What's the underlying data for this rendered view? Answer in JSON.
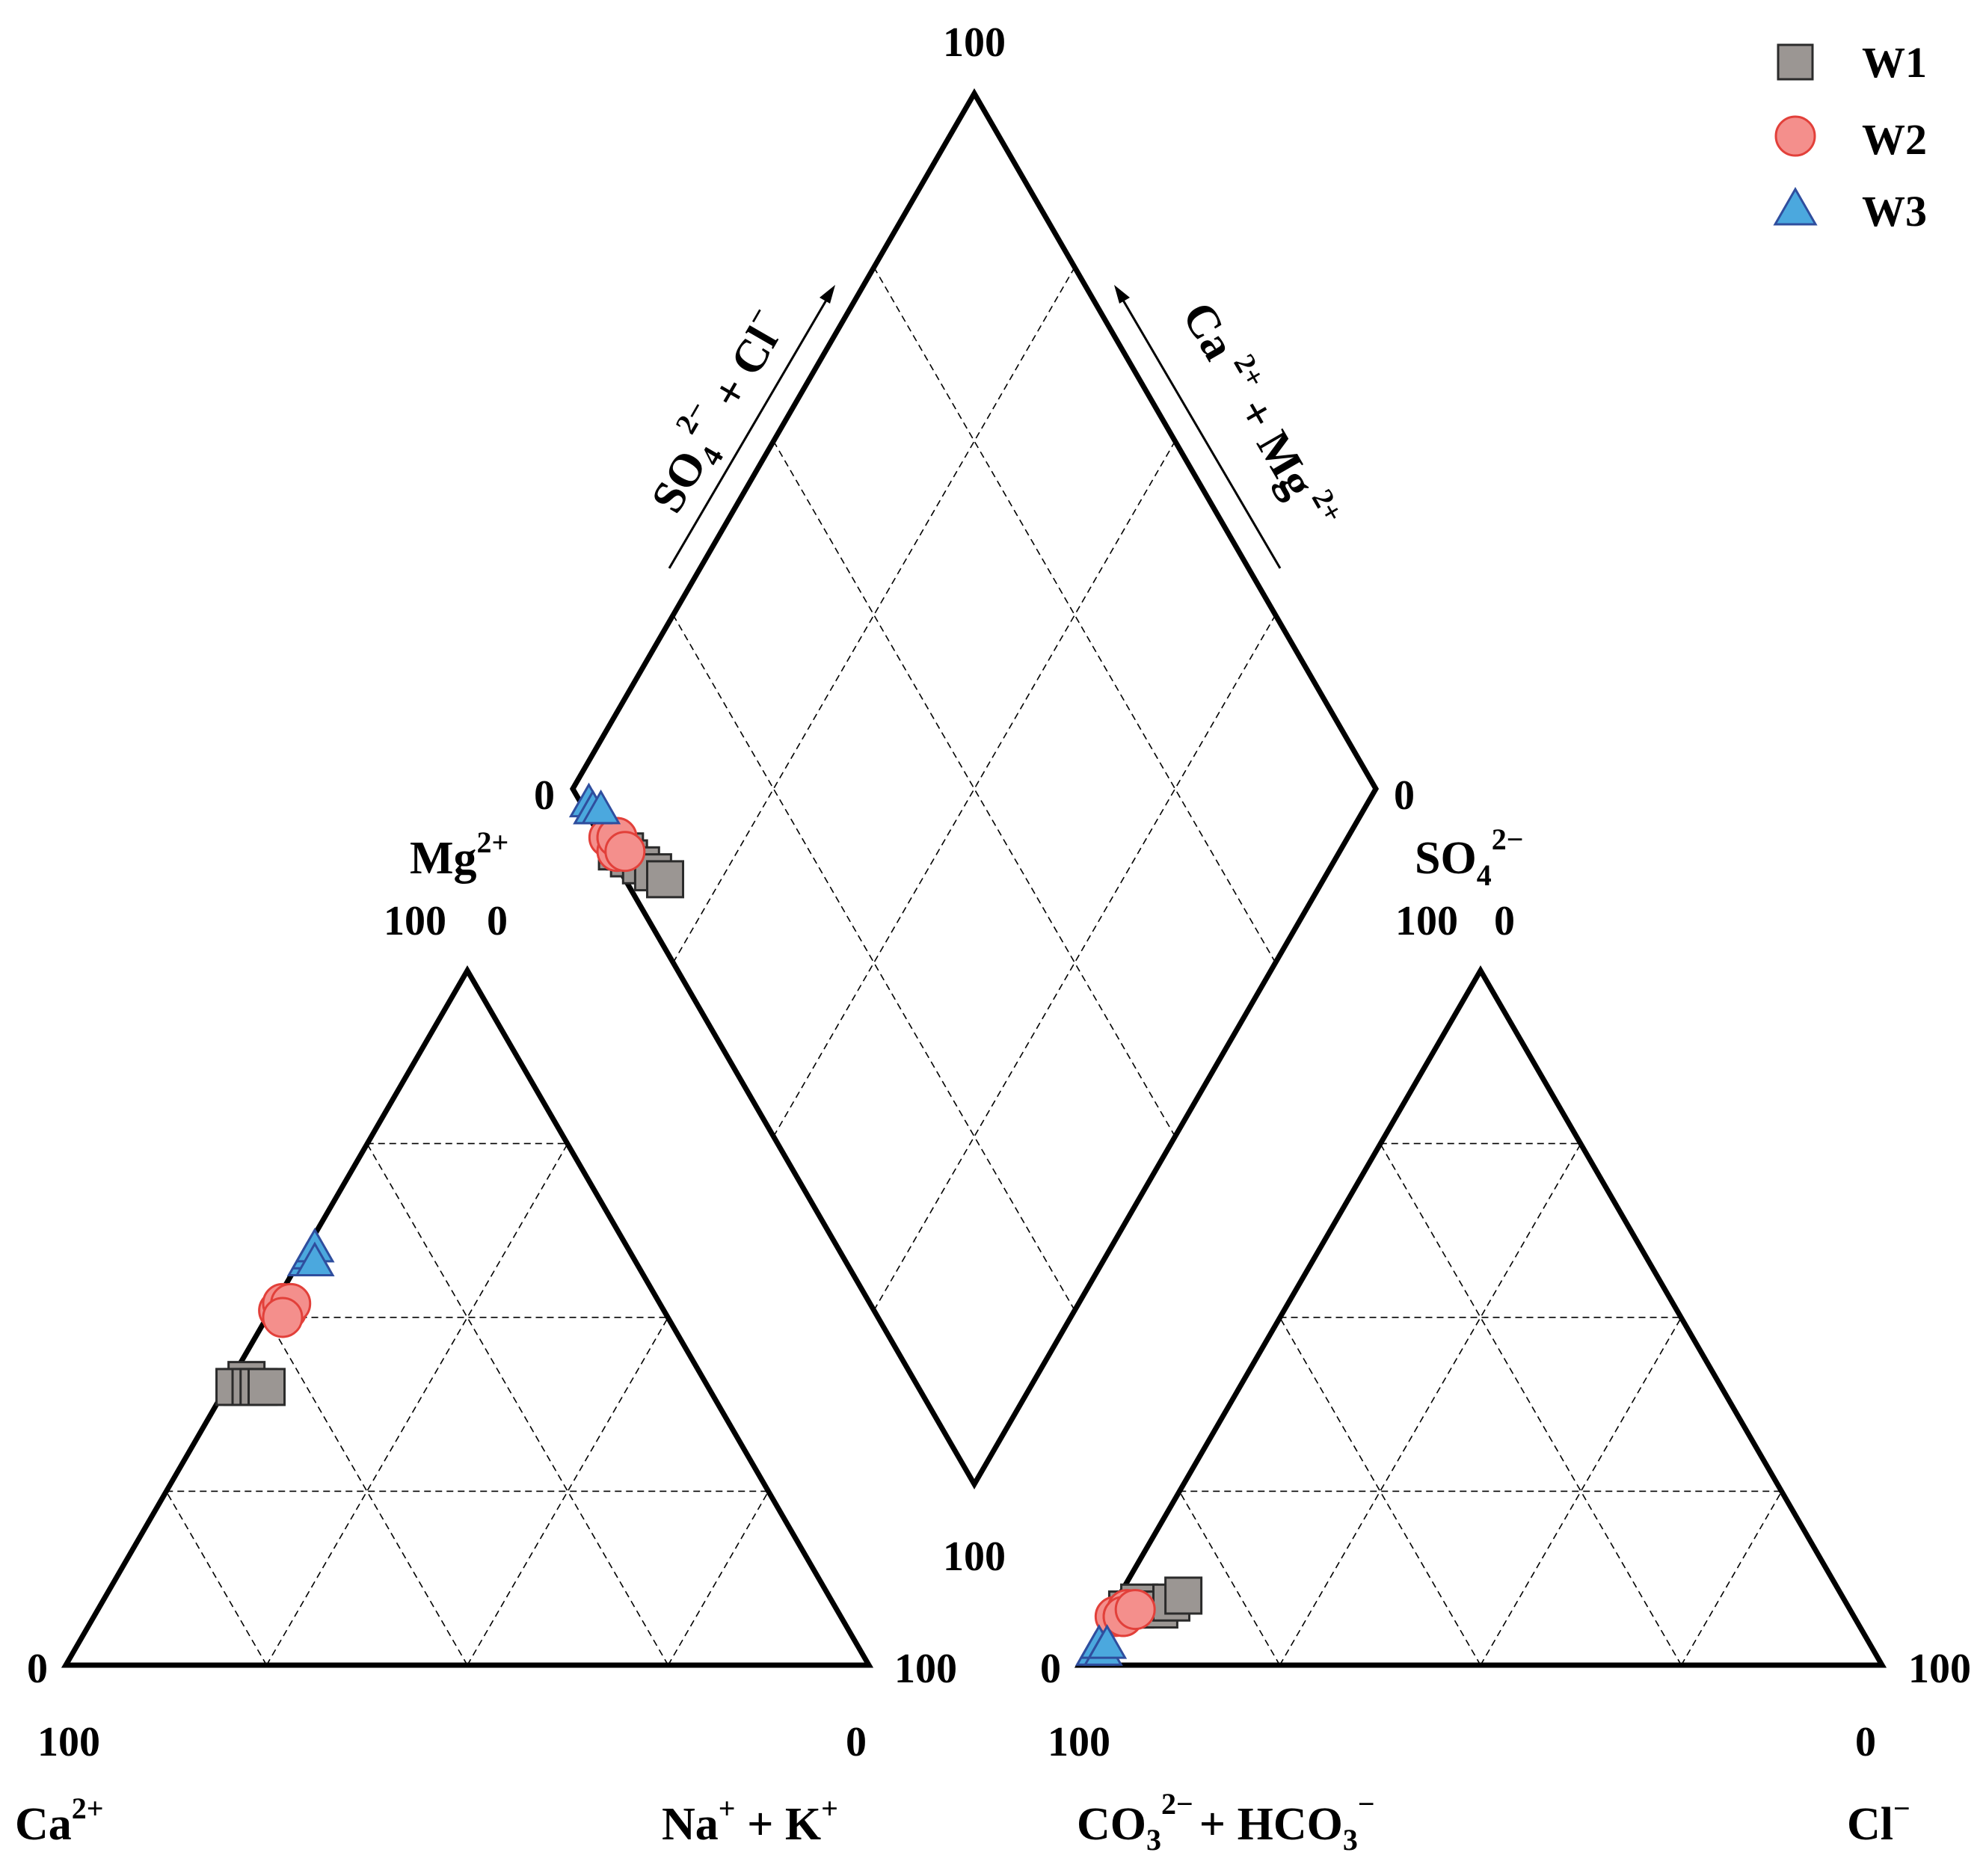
{
  "chart_data": {
    "type": "scatter",
    "diagram": "piper",
    "colors": {
      "W1": "#9b9693",
      "W2": "#f48f8c",
      "W3": "#4ba8de",
      "W1_stroke": "#2b2b2b",
      "W2_stroke": "#e2403a",
      "W3_stroke": "#2f4e9e"
    },
    "legend": {
      "position": "top-right",
      "entries": [
        "W1",
        "W2",
        "W3"
      ]
    },
    "cation_triangle": {
      "labels": {
        "bottom_left": "Ca",
        "bottom_left_sup": "2+",
        "bottom_right": "Na",
        "bottom_right_sup": "+",
        "bottom_right_tail": " + K",
        "bottom_right_tail_sup": "+",
        "top": "Mg",
        "top_sup": "2+"
      },
      "ticks": {
        "left_zero": "0",
        "right_hundred": "100",
        "under_left": "100",
        "under_right": "0",
        "apex_left": "100",
        "apex_right": "0"
      }
    },
    "anion_triangle": {
      "labels": {
        "bottom_left": "CO",
        "bottom_left_sub": "3",
        "bottom_left_sup": "2−",
        "bottom_left_mid": "+ HCO",
        "bottom_left_mid_sub": "3",
        "bottom_left_mid_sup": "−",
        "bottom_right": "Cl",
        "bottom_right_sup": "−",
        "top": "SO",
        "top_sub": "4",
        "top_sup": "2−"
      },
      "ticks": {
        "left_zero": "0",
        "left_above": "100",
        "right_hundred": "100",
        "under_left": "100",
        "under_right": "0",
        "apex_left": "100",
        "apex_right": "0"
      }
    },
    "diamond": {
      "labels": {
        "left_axis": "SO",
        "left_axis_sub": "4",
        "left_axis_sup": "2−",
        "left_axis_tail": " + Cl",
        "left_axis_tail_sup": "−",
        "right_axis": "Ca",
        "right_axis_sup": "2+",
        "right_axis_tail": " + Mg",
        "right_axis_tail_sup": "2+"
      },
      "ticks": {
        "top": "100",
        "left": "0",
        "right": "0"
      }
    },
    "samples": [
      {
        "series": "W1",
        "Ca": 58,
        "Mg": 40,
        "NaK": 2,
        "HCO3": 89,
        "SO4": 8,
        "Cl": 3
      },
      {
        "series": "W1",
        "Ca": 57,
        "Mg": 41,
        "NaK": 2,
        "HCO3": 88,
        "SO4": 9,
        "Cl": 3
      },
      {
        "series": "W1",
        "Ca": 59,
        "Mg": 40,
        "NaK": 1,
        "HCO3": 90,
        "SO4": 8,
        "Cl": 2
      },
      {
        "series": "W1",
        "Ca": 57,
        "Mg": 40,
        "NaK": 3,
        "HCO3": 86,
        "SO4": 8,
        "Cl": 6
      },
      {
        "series": "W1",
        "Ca": 56,
        "Mg": 40,
        "NaK": 4,
        "HCO3": 84,
        "SO4": 9,
        "Cl": 7
      },
      {
        "series": "W1",
        "Ca": 55,
        "Mg": 40,
        "NaK": 5,
        "HCO3": 82,
        "SO4": 10,
        "Cl": 8
      },
      {
        "series": "W2",
        "Ca": 48,
        "Mg": 51,
        "NaK": 1,
        "HCO3": 92,
        "SO4": 7,
        "Cl": 1
      },
      {
        "series": "W2",
        "Ca": 47,
        "Mg": 51,
        "NaK": 2,
        "HCO3": 91,
        "SO4": 7,
        "Cl": 2
      },
      {
        "series": "W2",
        "Ca": 47,
        "Mg": 52,
        "NaK": 1,
        "HCO3": 90,
        "SO4": 8,
        "Cl": 2
      },
      {
        "series": "W2",
        "Ca": 46,
        "Mg": 52,
        "NaK": 2,
        "HCO3": 91,
        "SO4": 7,
        "Cl": 2
      },
      {
        "series": "W2",
        "Ca": 48,
        "Mg": 50,
        "NaK": 2,
        "HCO3": 89,
        "SO4": 8,
        "Cl": 3
      },
      {
        "series": "W3",
        "Ca": 41,
        "Mg": 58,
        "NaK": 1,
        "HCO3": 97,
        "SO4": 2,
        "Cl": 1
      },
      {
        "series": "W3",
        "Ca": 40,
        "Mg": 59,
        "NaK": 1,
        "HCO3": 96,
        "SO4": 3,
        "Cl": 1
      },
      {
        "series": "W3",
        "Ca": 39,
        "Mg": 60,
        "NaK": 1,
        "HCO3": 96,
        "SO4": 2,
        "Cl": 2
      },
      {
        "series": "W3",
        "Ca": 40,
        "Mg": 58,
        "NaK": 2,
        "HCO3": 95,
        "SO4": 3,
        "Cl": 2
      }
    ]
  }
}
